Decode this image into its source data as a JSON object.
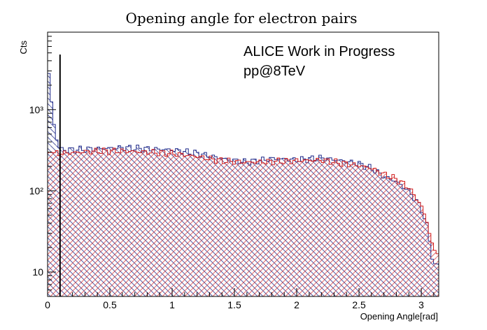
{
  "chart_data": {
    "type": "histogram",
    "title": "Opening angle for electron pairs",
    "xlabel": "Opening Angle[rad]",
    "ylabel": "Cts",
    "xlim": [
      0,
      3.14
    ],
    "ylim": [
      5,
      9000
    ],
    "yscale": "log",
    "x_ticks": [
      0,
      0.5,
      1,
      1.5,
      2,
      2.5,
      3
    ],
    "x_tick_labels": [
      "0",
      "0.5",
      "1",
      "1.5",
      "2",
      "2.5",
      "3"
    ],
    "y_ticks": [
      10,
      100,
      1000
    ],
    "y_tick_labels": [
      "10",
      "10²",
      "10³"
    ],
    "bins": 150,
    "grid": false,
    "annotations": [
      "ALICE Work in Progress",
      "pp@8TeV"
    ],
    "vertical_line_x": 0.1,
    "colors": {
      "series_blue": "#1f2a8a",
      "series_red": "#d11a1a",
      "axes": "#000000"
    },
    "series": [
      {
        "color": "blue",
        "hatch": "backslash",
        "points": [
          [
            0,
            4200
          ],
          [
            0.03,
            1300
          ],
          [
            0.06,
            520
          ],
          [
            0.1,
            320
          ],
          [
            0.2,
            320
          ],
          [
            0.4,
            330
          ],
          [
            0.6,
            340
          ],
          [
            0.8,
            330
          ],
          [
            1.0,
            320
          ],
          [
            1.2,
            290
          ],
          [
            1.4,
            250
          ],
          [
            1.6,
            225
          ],
          [
            1.8,
            250
          ],
          [
            2.0,
            240
          ],
          [
            2.2,
            255
          ],
          [
            2.4,
            230
          ],
          [
            2.5,
            215
          ],
          [
            2.6,
            190
          ],
          [
            2.7,
            150
          ],
          [
            2.8,
            130
          ],
          [
            2.9,
            100
          ],
          [
            3.0,
            62
          ],
          [
            3.05,
            35
          ],
          [
            3.1,
            12
          ]
        ]
      },
      {
        "color": "red",
        "hatch": "slash",
        "points": [
          [
            0,
            300
          ],
          [
            0.1,
            290
          ],
          [
            0.2,
            295
          ],
          [
            0.4,
            310
          ],
          [
            0.6,
            310
          ],
          [
            0.8,
            300
          ],
          [
            1.0,
            290
          ],
          [
            1.2,
            265
          ],
          [
            1.4,
            235
          ],
          [
            1.6,
            225
          ],
          [
            1.8,
            230
          ],
          [
            2.0,
            235
          ],
          [
            2.2,
            240
          ],
          [
            2.4,
            215
          ],
          [
            2.5,
            205
          ],
          [
            2.6,
            190
          ],
          [
            2.7,
            160
          ],
          [
            2.8,
            140
          ],
          [
            2.9,
            110
          ],
          [
            3.0,
            66
          ],
          [
            3.05,
            40
          ],
          [
            3.1,
            18
          ]
        ]
      }
    ]
  }
}
